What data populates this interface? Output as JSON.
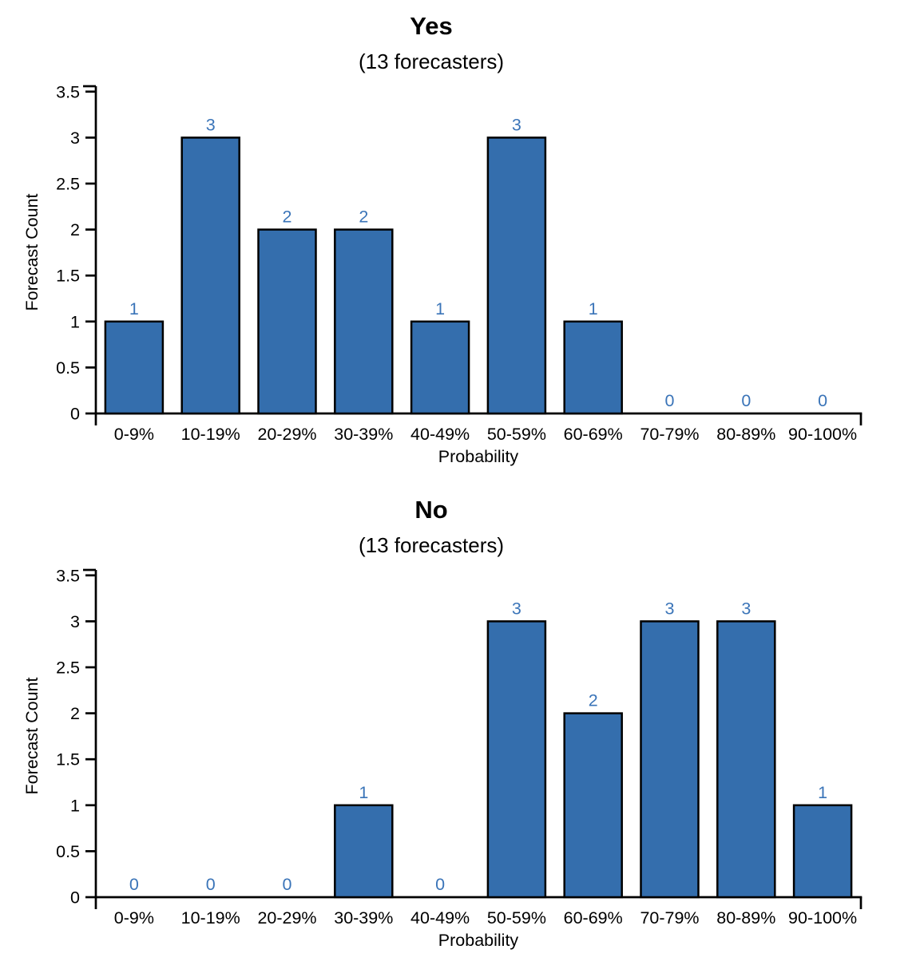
{
  "style": {
    "background": "#ffffff",
    "bar_fill": "#346EAD",
    "bar_stroke": "#000000",
    "value_label_color": "#3A74B8",
    "axis_color": "#000000",
    "text_color": "#000000"
  },
  "chart_data": [
    {
      "type": "bar",
      "title": "Yes",
      "subtitle": "(13 forecasters)",
      "xlabel": "Probability",
      "ylabel": "Forecast Count",
      "categories": [
        "0-9%",
        "10-19%",
        "20-29%",
        "30-39%",
        "40-49%",
        "50-59%",
        "60-69%",
        "70-79%",
        "80-89%",
        "90-100%"
      ],
      "values": [
        1,
        3,
        2,
        2,
        1,
        3,
        1,
        0,
        0,
        0
      ],
      "bar_value_labels": [
        "1",
        "3",
        "2",
        "2",
        "1",
        "3",
        "1",
        "0",
        "0",
        "0"
      ],
      "ylim": [
        0,
        3.5
      ],
      "yticks": [
        0,
        0.5,
        1,
        1.5,
        2,
        2.5,
        3,
        3.5
      ],
      "ytick_labels": [
        "0",
        "0.5",
        "1",
        "1.5",
        "2",
        "2.5",
        "3",
        "3.5"
      ],
      "grid": false,
      "legend": null
    },
    {
      "type": "bar",
      "title": "No",
      "subtitle": "(13 forecasters)",
      "xlabel": "Probability",
      "ylabel": "Forecast Count",
      "categories": [
        "0-9%",
        "10-19%",
        "20-29%",
        "30-39%",
        "40-49%",
        "50-59%",
        "60-69%",
        "70-79%",
        "80-89%",
        "90-100%"
      ],
      "values": [
        0,
        0,
        0,
        1,
        0,
        3,
        2,
        3,
        3,
        1
      ],
      "bar_value_labels": [
        "0",
        "0",
        "0",
        "1",
        "0",
        "3",
        "2",
        "3",
        "3",
        "1"
      ],
      "ylim": [
        0,
        3.5
      ],
      "yticks": [
        0,
        0.5,
        1,
        1.5,
        2,
        2.5,
        3,
        3.5
      ],
      "ytick_labels": [
        "0",
        "0.5",
        "1",
        "1.5",
        "2",
        "2.5",
        "3",
        "3.5"
      ],
      "grid": false,
      "legend": null
    }
  ]
}
